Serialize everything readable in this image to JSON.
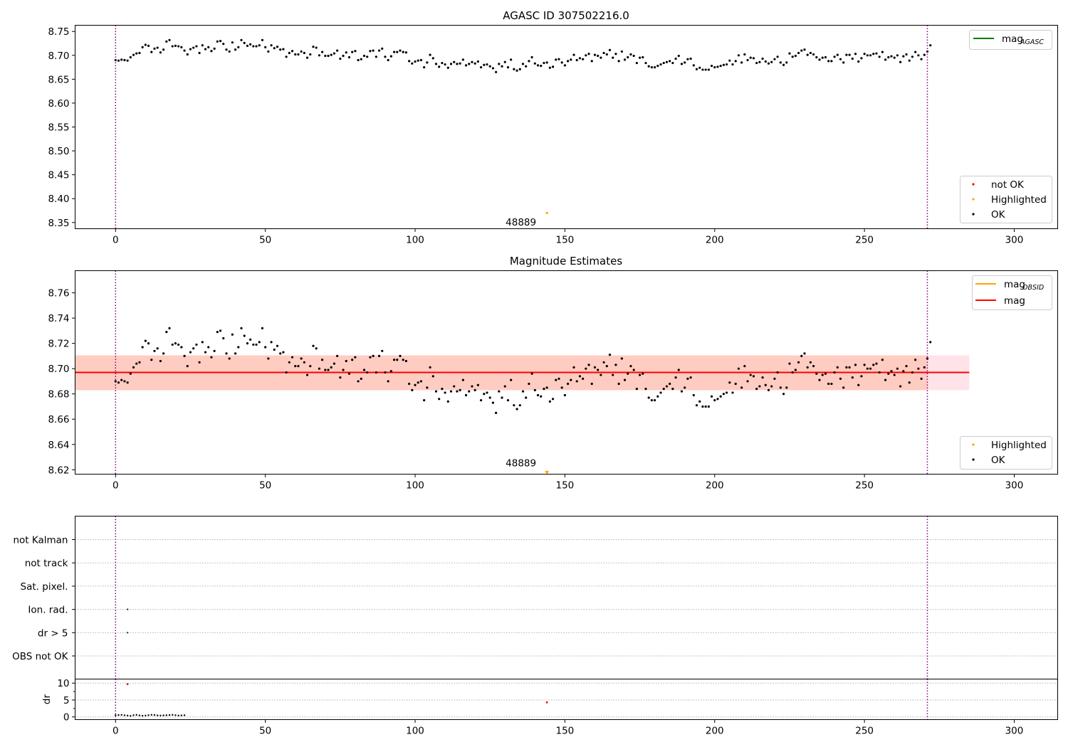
{
  "colors": {
    "ok": "#000000",
    "highlighted": "#ffa500",
    "not_ok": "#ff0000",
    "mag_agasc": "#008000",
    "mag_obsid": "#ffa500",
    "mag": "#ff0000",
    "band_pink": "#ffc0cb",
    "band_orange": "#ffa07a",
    "vline": "#800080"
  },
  "chart_data": [
    {
      "id": "agasc",
      "type": "scatter",
      "title": "AGASC ID 307502216.0",
      "xlim": [
        -13.5,
        314.5
      ],
      "ylim": [
        8.337,
        8.763
      ],
      "yticks": [
        8.35,
        8.4,
        8.45,
        8.5,
        8.55,
        8.6,
        8.65,
        8.7,
        8.75
      ],
      "ytick_labels": [
        "8.35",
        "8.40",
        "8.45",
        "8.50",
        "8.55",
        "8.60",
        "8.65",
        "8.70",
        "8.75"
      ],
      "xticks": [
        0,
        50,
        100,
        150,
        200,
        250,
        300
      ],
      "xtick_labels": [
        "0",
        "50",
        "100",
        "150",
        "200",
        "250",
        "300"
      ],
      "vlines": [
        0,
        271
      ],
      "series": [
        {
          "name": "OK",
          "anchors": [
            [
              0,
              8.69
            ],
            [
              10,
              8.716
            ],
            [
              20,
              8.722
            ],
            [
              30,
              8.711
            ],
            [
              36,
              8.724
            ],
            [
              45,
              8.72
            ],
            [
              55,
              8.716
            ],
            [
              62,
              8.702
            ],
            [
              70,
              8.703
            ],
            [
              80,
              8.702
            ],
            [
              90,
              8.699
            ],
            [
              100,
              8.688
            ],
            [
              110,
              8.682
            ],
            [
              120,
              8.686
            ],
            [
              125,
              8.678
            ],
            [
              130,
              8.68
            ],
            [
              135,
              8.676
            ],
            [
              140,
              8.69
            ],
            [
              145,
              8.684
            ],
            [
              150,
              8.691
            ],
            [
              157,
              8.702
            ],
            [
              165,
              8.697
            ],
            [
              172,
              8.697
            ],
            [
              178,
              8.68
            ],
            [
              185,
              8.688
            ],
            [
              190,
              8.689
            ],
            [
              196,
              8.672
            ],
            [
              205,
              8.682
            ],
            [
              210,
              8.692
            ],
            [
              215,
              8.686
            ],
            [
              220,
              8.685
            ],
            [
              225,
              8.693
            ],
            [
              232,
              8.712
            ],
            [
              240,
              8.695
            ],
            [
              250,
              8.698
            ],
            [
              257,
              8.692
            ],
            [
              265,
              8.7
            ],
            [
              271,
              8.71
            ]
          ],
          "values": [
            8.69,
            8.689,
            8.691,
            8.69,
            8.689,
            8.696,
            8.701,
            8.704,
            8.705,
            8.717,
            8.722,
            8.72,
            8.707,
            8.714,
            8.716,
            8.706,
            8.712,
            8.729,
            8.732,
            8.719,
            8.72,
            8.719,
            8.717,
            8.71,
            8.702,
            8.713,
            8.716,
            8.719,
            8.705,
            8.721,
            8.713,
            8.717,
            8.709,
            8.714,
            8.729,
            8.73,
            8.724,
            8.712,
            8.708,
            8.727,
            8.712,
            8.717,
            8.732,
            8.726,
            8.72,
            8.723,
            8.719,
            8.719,
            8.721,
            8.732,
            8.717,
            8.708,
            8.721,
            8.715,
            8.718,
            8.712,
            8.713,
            8.697,
            8.705,
            8.709,
            8.702,
            8.702,
            8.708,
            8.705,
            8.695,
            8.702,
            8.718,
            8.716,
            8.7,
            8.707,
            8.699,
            8.699,
            8.701,
            8.704,
            8.71,
            8.693,
            8.699,
            8.706,
            8.696,
            8.707,
            8.709,
            8.69,
            8.692,
            8.699,
            8.697,
            8.709,
            8.71,
            8.697,
            8.71,
            8.714,
            8.697,
            8.69,
            8.698,
            8.707,
            8.707,
            8.71,
            8.707,
            8.706,
            8.688,
            8.683,
            8.687,
            8.689,
            8.69,
            8.675,
            8.685,
            8.701,
            8.694,
            8.682,
            8.676,
            8.684,
            8.681,
            8.674,
            8.682,
            8.686,
            8.682,
            8.683,
            8.691,
            8.679,
            8.682,
            8.686,
            8.683,
            8.687,
            8.675,
            8.68,
            8.681,
            8.677,
            8.673,
            8.665,
            8.682,
            8.677,
            8.686,
            8.675,
            8.691,
            8.671,
            8.668,
            8.671,
            8.682,
            8.677,
            8.688,
            8.696,
            8.683,
            8.679,
            8.678,
            8.684,
            8.685,
            8.674,
            8.676,
            8.691,
            8.692,
            8.685,
            8.679,
            8.688,
            8.691,
            8.701,
            8.69,
            8.694,
            8.692,
            8.7,
            8.703,
            8.688,
            8.701,
            8.699,
            8.695,
            8.705,
            8.702,
            8.711,
            8.695,
            8.703,
            8.688,
            8.708,
            8.691,
            8.696,
            8.702,
            8.699,
            8.684,
            8.695,
            8.696,
            8.684,
            8.677,
            8.675,
            8.675,
            8.678,
            8.681,
            8.684,
            8.686,
            8.688,
            8.684,
            8.693,
            8.699,
            8.682,
            8.685,
            8.692,
            8.693,
            8.679,
            8.671,
            8.674,
            8.67,
            8.67,
            8.67,
            8.678,
            8.675,
            8.676,
            8.678,
            8.68,
            8.681,
            8.689,
            8.681,
            8.688,
            8.7,
            8.685,
            8.702,
            8.69,
            8.695,
            8.694,
            8.684,
            8.686,
            8.693,
            8.687,
            8.683,
            8.686,
            8.692,
            8.697,
            8.685,
            8.68,
            8.685,
            8.704,
            8.697,
            8.699,
            8.705,
            8.71,
            8.712,
            8.701,
            8.705,
            8.702,
            8.696,
            8.691,
            8.695,
            8.696,
            8.688,
            8.688,
            8.697,
            8.701,
            8.692,
            8.685,
            8.701,
            8.701,
            8.693,
            8.703,
            8.687,
            8.694,
            8.703,
            8.7,
            8.7,
            8.703,
            8.704,
            8.697,
            8.707,
            8.691,
            8.696,
            8.698,
            8.695,
            8.7,
            8.686,
            8.698,
            8.702,
            8.689,
            8.697,
            8.707,
            8.7,
            8.692,
            8.701,
            8.708,
            8.721
          ]
        },
        {
          "name": "Highlighted",
          "x": [
            144
          ],
          "y": [
            8.37
          ]
        }
      ],
      "annotations": [
        {
          "text": "48889",
          "x": 144,
          "y": 8.35
        }
      ],
      "legend_lines": {
        "position": "top-right",
        "items": [
          {
            "label": "mag",
            "sub": "AGASC"
          }
        ]
      },
      "legend_points": {
        "position": "bottom-right",
        "items": [
          "not OK",
          "Highlighted",
          "OK"
        ]
      }
    },
    {
      "id": "estimates",
      "type": "scatter",
      "title": "Magnitude Estimates",
      "xlim": [
        -13.5,
        314.5
      ],
      "ylim": [
        8.6165,
        8.7775
      ],
      "yticks": [
        8.62,
        8.64,
        8.66,
        8.68,
        8.7,
        8.72,
        8.74,
        8.76
      ],
      "ytick_labels": [
        "8.62",
        "8.64",
        "8.66",
        "8.68",
        "8.70",
        "8.72",
        "8.74",
        "8.76"
      ],
      "xticks": [
        0,
        50,
        100,
        150,
        200,
        250,
        300
      ],
      "xtick_labels": [
        "0",
        "50",
        "100",
        "150",
        "200",
        "250",
        "300"
      ],
      "vlines": [
        0,
        271
      ],
      "mag": 8.697,
      "band": [
        8.683,
        8.7105
      ],
      "band_x": [
        -13.5,
        285
      ],
      "series": [
        {
          "name": "OK",
          "values": [
            8.69,
            8.689,
            8.691,
            8.69,
            8.689,
            8.696,
            8.701,
            8.704,
            8.705,
            8.717,
            8.722,
            8.72,
            8.707,
            8.714,
            8.716,
            8.706,
            8.712,
            8.729,
            8.732,
            8.719,
            8.72,
            8.719,
            8.717,
            8.71,
            8.702,
            8.713,
            8.716,
            8.719,
            8.705,
            8.721,
            8.713,
            8.717,
            8.709,
            8.714,
            8.729,
            8.73,
            8.724,
            8.712,
            8.708,
            8.727,
            8.712,
            8.717,
            8.732,
            8.726,
            8.72,
            8.723,
            8.719,
            8.719,
            8.721,
            8.732,
            8.717,
            8.708,
            8.721,
            8.715,
            8.718,
            8.712,
            8.713,
            8.697,
            8.705,
            8.709,
            8.702,
            8.702,
            8.708,
            8.705,
            8.695,
            8.702,
            8.718,
            8.716,
            8.7,
            8.707,
            8.699,
            8.699,
            8.701,
            8.704,
            8.71,
            8.693,
            8.699,
            8.706,
            8.696,
            8.707,
            8.709,
            8.69,
            8.692,
            8.699,
            8.697,
            8.709,
            8.71,
            8.697,
            8.71,
            8.714,
            8.697,
            8.69,
            8.698,
            8.707,
            8.707,
            8.71,
            8.707,
            8.706,
            8.688,
            8.683,
            8.687,
            8.689,
            8.69,
            8.675,
            8.685,
            8.701,
            8.694,
            8.682,
            8.676,
            8.684,
            8.681,
            8.674,
            8.682,
            8.686,
            8.682,
            8.683,
            8.691,
            8.679,
            8.682,
            8.686,
            8.683,
            8.687,
            8.675,
            8.68,
            8.681,
            8.677,
            8.673,
            8.665,
            8.682,
            8.677,
            8.686,
            8.675,
            8.691,
            8.671,
            8.668,
            8.671,
            8.682,
            8.677,
            8.688,
            8.696,
            8.683,
            8.679,
            8.678,
            8.684,
            8.685,
            8.674,
            8.676,
            8.691,
            8.692,
            8.685,
            8.679,
            8.688,
            8.691,
            8.701,
            8.69,
            8.694,
            8.692,
            8.7,
            8.703,
            8.688,
            8.701,
            8.699,
            8.695,
            8.705,
            8.702,
            8.711,
            8.695,
            8.703,
            8.688,
            8.708,
            8.691,
            8.696,
            8.702,
            8.699,
            8.684,
            8.695,
            8.696,
            8.684,
            8.677,
            8.675,
            8.675,
            8.678,
            8.681,
            8.684,
            8.686,
            8.688,
            8.684,
            8.693,
            8.699,
            8.682,
            8.685,
            8.692,
            8.693,
            8.679,
            8.671,
            8.674,
            8.67,
            8.67,
            8.67,
            8.678,
            8.675,
            8.676,
            8.678,
            8.68,
            8.681,
            8.689,
            8.681,
            8.688,
            8.7,
            8.685,
            8.702,
            8.69,
            8.695,
            8.694,
            8.684,
            8.686,
            8.693,
            8.687,
            8.683,
            8.686,
            8.692,
            8.697,
            8.685,
            8.68,
            8.685,
            8.704,
            8.697,
            8.699,
            8.705,
            8.71,
            8.712,
            8.701,
            8.705,
            8.702,
            8.696,
            8.691,
            8.695,
            8.696,
            8.688,
            8.688,
            8.697,
            8.701,
            8.692,
            8.685,
            8.701,
            8.701,
            8.693,
            8.703,
            8.687,
            8.694,
            8.703,
            8.7,
            8.7,
            8.703,
            8.704,
            8.697,
            8.707,
            8.691,
            8.696,
            8.698,
            8.695,
            8.7,
            8.686,
            8.698,
            8.702,
            8.689,
            8.697,
            8.707,
            8.7,
            8.692,
            8.701,
            8.708,
            8.721
          ]
        },
        {
          "name": "Highlighted",
          "x": [
            144
          ],
          "y": [
            8.618
          ]
        }
      ],
      "annotations": [
        {
          "text": "48889",
          "x": 144,
          "y": 8.621
        }
      ],
      "legend_lines": {
        "position": "top-right",
        "items": [
          {
            "label": "mag",
            "sub": "OBSID"
          },
          {
            "label": "mag",
            "sub": ""
          }
        ]
      },
      "legend_points": {
        "position": "bottom-right",
        "items": [
          "Highlighted",
          "OK"
        ]
      }
    },
    {
      "id": "flags",
      "type": "scatter",
      "xlim": [
        -13.5,
        314.5
      ],
      "categories": [
        "not Kalman",
        "not track",
        "Sat. pixel.",
        "Ion. rad.",
        "dr > 5",
        "OBS not OK"
      ],
      "vlines": [
        0,
        271
      ],
      "flag_points": [
        {
          "category": "Ion. rad.",
          "x": 4
        },
        {
          "category": "dr > 5",
          "x": 4
        }
      ]
    },
    {
      "id": "dr",
      "type": "scatter",
      "xlim": [
        -13.5,
        314.5
      ],
      "ylim": [
        -0.8,
        11.2
      ],
      "ylabel": "dr",
      "yticks": [
        0,
        5,
        10
      ],
      "ytick_labels": [
        "0",
        "5",
        "10"
      ],
      "xticks": [
        0,
        50,
        100,
        150,
        200,
        250,
        300
      ],
      "xtick_labels": [
        "0",
        "50",
        "100",
        "150",
        "200",
        "250",
        "300"
      ],
      "vlines": [
        0,
        271
      ],
      "series": [
        {
          "name": "OK",
          "values": [
            0.5,
            0.55,
            0.6,
            0.5,
            0.4,
            0.3,
            0.5,
            0.6,
            0.45,
            0.35,
            0.4,
            0.5,
            0.6,
            0.55,
            0.45,
            0.4,
            0.45,
            0.5,
            0.55,
            0.6,
            0.5,
            0.4,
            0.45,
            0.5
          ]
        },
        {
          "name": "not OK",
          "x": [
            4,
            144
          ],
          "y": [
            9.7,
            4.3
          ]
        }
      ]
    }
  ]
}
